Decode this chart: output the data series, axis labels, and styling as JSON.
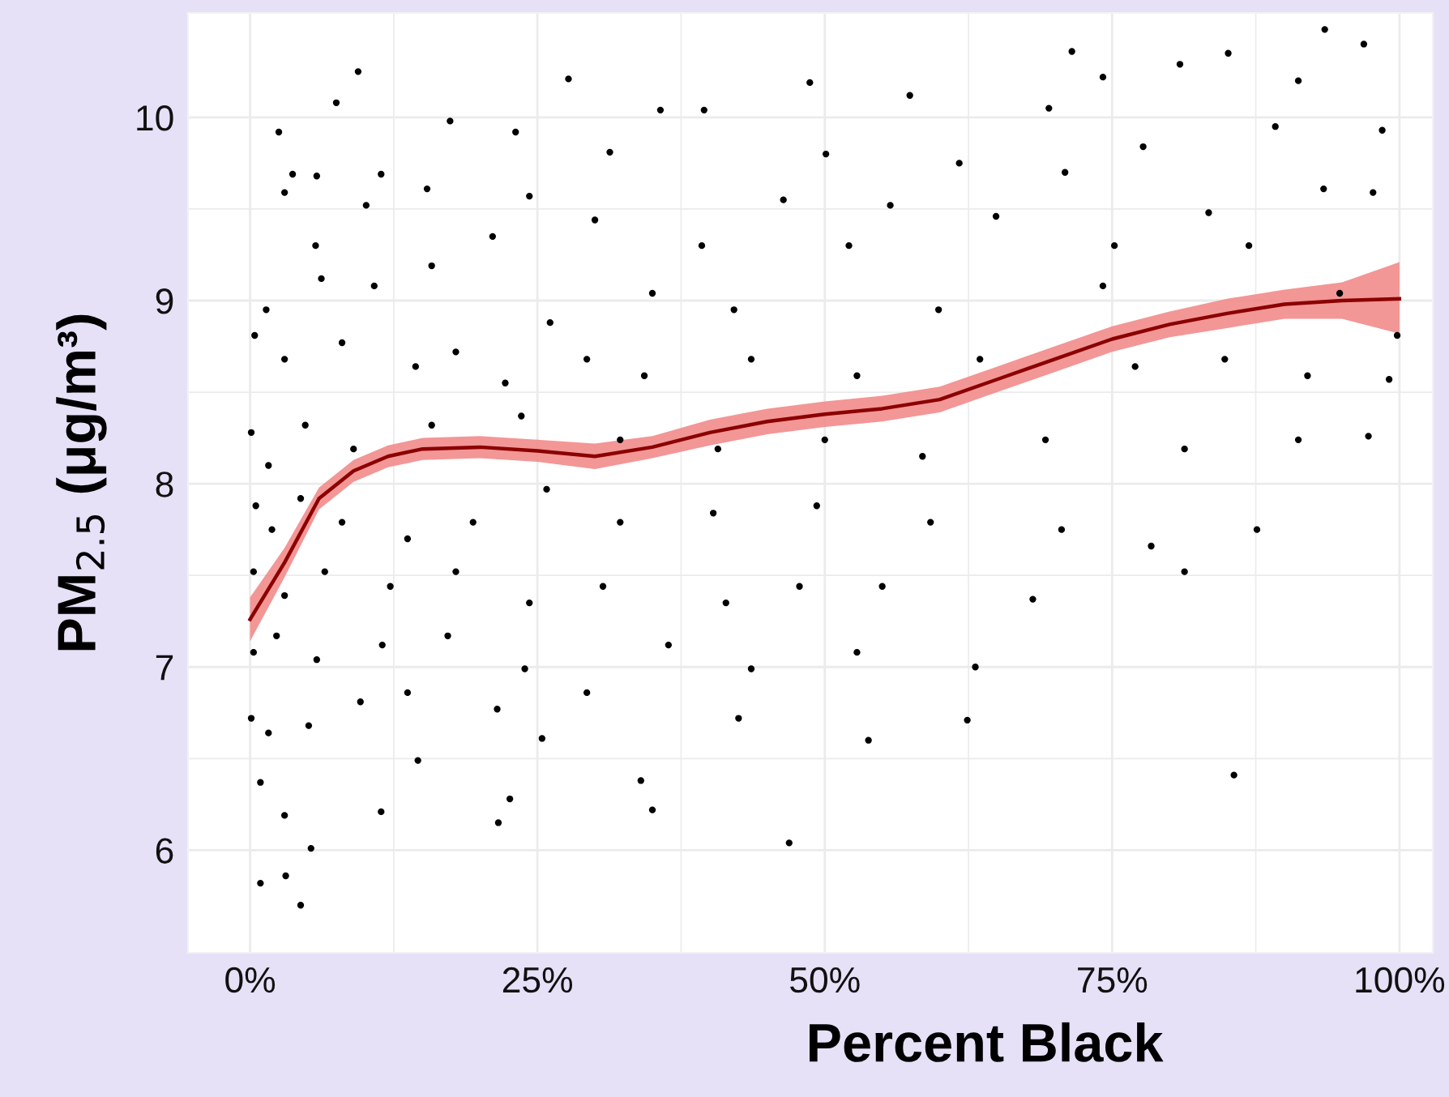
{
  "chart_data": {
    "type": "scatter",
    "xlabel": "Percent Black",
    "ylabel": "PM$_{2.5}$ (μg/m³)",
    "xlim": [
      -5.4,
      102.9
    ],
    "ylim": [
      5.44,
      10.57
    ],
    "xticks": [
      {
        "value": 0,
        "label": "0%"
      },
      {
        "value": 25,
        "label": "25%"
      },
      {
        "value": 50,
        "label": "50%"
      },
      {
        "value": 75,
        "label": "75%"
      },
      {
        "value": 100,
        "label": "100%"
      }
    ],
    "yticks": [
      6,
      7,
      8,
      9,
      10
    ],
    "grid": true,
    "marker": "circle",
    "series": [
      {
        "color": "#000000",
        "x": [
          93.5,
          85.1,
          71.5,
          80.9,
          74.2,
          48.7,
          27.7,
          9.4,
          7.5,
          2.5,
          17.4,
          35.7,
          39.5,
          57.4,
          69.5,
          98.5,
          96.9,
          91.2,
          89.2,
          3.7,
          5.8,
          11.4,
          23.1,
          31.3,
          50.1,
          61.7,
          77.7,
          70.9,
          97.7,
          3.0,
          10.1,
          15.4,
          24.3,
          46.4,
          55.7,
          64.9,
          83.4,
          93.4,
          5.7,
          21.1,
          30.0,
          39.3,
          52.1,
          75.2,
          86.9,
          0.4,
          1.4,
          6.2,
          10.8,
          15.8,
          26.1,
          35.0,
          42.1,
          59.9,
          74.2,
          94.8,
          99.8,
          3.0,
          8.0,
          14.4,
          17.9,
          22.2,
          29.3,
          34.3,
          43.6,
          52.8,
          63.5,
          77.0,
          84.8,
          92.0,
          99.1,
          0.1,
          1.6,
          4.8,
          9.0,
          15.8,
          23.6,
          32.2,
          40.7,
          50.0,
          58.5,
          69.2,
          81.3,
          91.2,
          97.3,
          0.5,
          1.9,
          4.4,
          8.0,
          13.7,
          19.4,
          25.8,
          32.2,
          40.3,
          49.3,
          59.2,
          70.6,
          78.4,
          87.6,
          81.3,
          0.3,
          3.0,
          6.5,
          12.2,
          17.9,
          24.3,
          30.7,
          41.4,
          47.8,
          55.0,
          68.1,
          0.3,
          2.3,
          5.8,
          11.5,
          17.2,
          23.9,
          29.3,
          36.4,
          43.6,
          52.8,
          63.1,
          0.1,
          1.6,
          5.1,
          9.6,
          13.7,
          21.5,
          25.4,
          42.5,
          62.4,
          53.8,
          0.9,
          3.0,
          11.4,
          14.6,
          22.6,
          34.0,
          35.0,
          85.6,
          21.6,
          46.9,
          0.9,
          3.1,
          4.4,
          5.3
        ],
        "values": [
          10.48,
          10.35,
          10.36,
          10.29,
          10.22,
          10.19,
          10.21,
          10.25,
          10.08,
          9.92,
          9.98,
          10.04,
          10.04,
          10.12,
          10.05,
          9.93,
          10.4,
          10.2,
          9.95,
          9.69,
          9.68,
          9.69,
          9.92,
          9.81,
          9.8,
          9.75,
          9.84,
          9.7,
          9.59,
          9.59,
          9.52,
          9.61,
          9.57,
          9.55,
          9.52,
          9.46,
          9.48,
          9.61,
          9.3,
          9.35,
          9.44,
          9.3,
          9.3,
          9.3,
          9.3,
          8.81,
          8.95,
          9.12,
          9.08,
          9.19,
          8.88,
          9.04,
          8.95,
          8.95,
          9.08,
          9.04,
          8.81,
          8.68,
          8.77,
          8.64,
          8.72,
          8.55,
          8.68,
          8.59,
          8.68,
          8.59,
          8.68,
          8.64,
          8.68,
          8.59,
          8.57,
          8.28,
          8.1,
          8.32,
          8.19,
          8.32,
          8.37,
          8.24,
          8.19,
          8.24,
          8.15,
          8.24,
          8.19,
          8.24,
          8.26,
          7.88,
          7.75,
          7.92,
          7.79,
          7.7,
          7.79,
          7.97,
          7.79,
          7.84,
          7.88,
          7.79,
          7.75,
          7.66,
          7.75,
          7.52,
          7.52,
          7.39,
          7.52,
          7.44,
          7.52,
          7.35,
          7.44,
          7.35,
          7.44,
          7.44,
          7.37,
          7.08,
          7.17,
          7.04,
          7.12,
          7.17,
          6.99,
          6.86,
          7.12,
          6.99,
          7.08,
          7.0,
          6.72,
          6.64,
          6.68,
          6.81,
          6.86,
          6.77,
          6.61,
          6.72,
          6.71,
          6.6,
          6.37,
          6.19,
          6.21,
          6.49,
          6.28,
          6.38,
          6.22,
          6.41,
          6.15,
          6.04,
          5.82,
          5.86,
          5.7,
          6.01
        ]
      },
      {
        "type": "line",
        "color": "#8b0000",
        "marker": "none",
        "line_style": "solid",
        "x": [
          0,
          3,
          6,
          9,
          12,
          15,
          20,
          25,
          30,
          35,
          40,
          45,
          50,
          55,
          60,
          65,
          70,
          75,
          80,
          85,
          90,
          95,
          100
        ],
        "values": [
          7.26,
          7.57,
          7.92,
          8.07,
          8.15,
          8.19,
          8.2,
          8.18,
          8.15,
          8.2,
          8.28,
          8.34,
          8.38,
          8.41,
          8.46,
          8.57,
          8.68,
          8.79,
          8.87,
          8.93,
          8.98,
          9.0,
          9.01
        ],
        "lower": [
          7.14,
          7.49,
          7.86,
          8.01,
          8.09,
          8.13,
          8.14,
          8.12,
          8.08,
          8.14,
          8.21,
          8.27,
          8.31,
          8.34,
          8.39,
          8.5,
          8.61,
          8.72,
          8.8,
          8.85,
          8.9,
          8.9,
          8.82
        ],
        "upper": [
          7.38,
          7.65,
          7.98,
          8.13,
          8.21,
          8.25,
          8.26,
          8.24,
          8.22,
          8.26,
          8.35,
          8.41,
          8.45,
          8.48,
          8.53,
          8.64,
          8.75,
          8.86,
          8.94,
          9.01,
          9.06,
          9.1,
          9.21
        ]
      }
    ]
  }
}
